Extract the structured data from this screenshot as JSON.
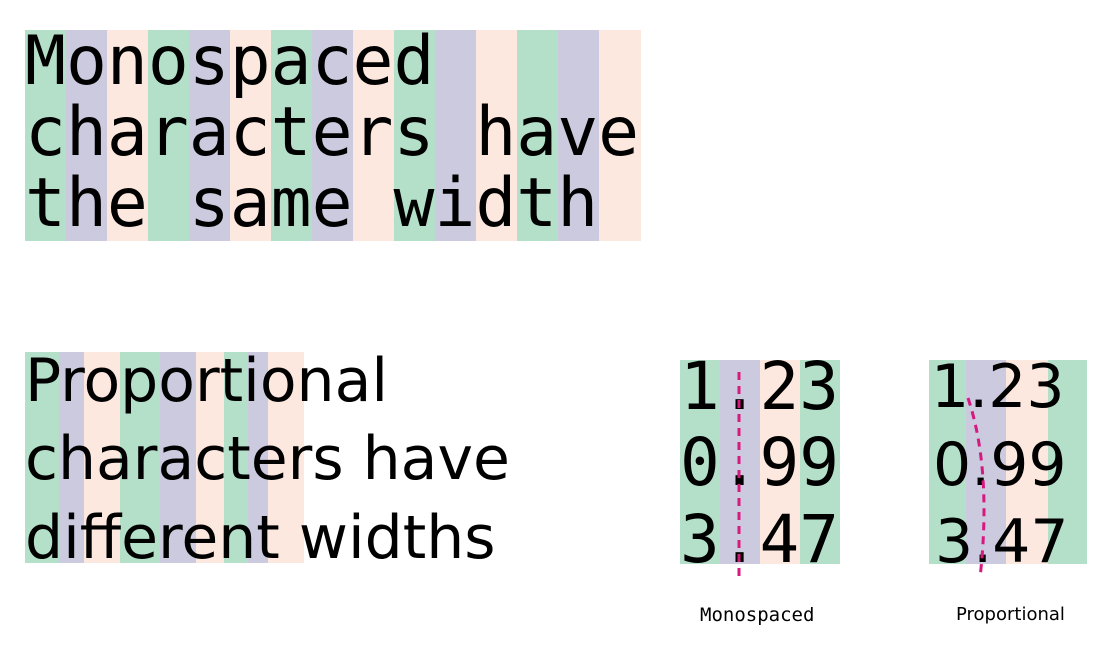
{
  "colors": {
    "green": "#b4e0c9",
    "purple": "#cccadf",
    "peach": "#fde8df",
    "text": "#000000",
    "guide": "#d6197f"
  },
  "mono_block": {
    "lines": [
      "Monospaced",
      "characters have",
      "the same width"
    ]
  },
  "prop_block": {
    "lines": [
      "Proportional",
      "characters have",
      "different widths"
    ]
  },
  "mono_numbers": {
    "lines": [
      "1.23",
      "0.99",
      "3.47"
    ],
    "caption": "Monospaced"
  },
  "prop_numbers": {
    "lines": [
      "1.23",
      "0.99",
      "3.47"
    ],
    "caption": "Proportional"
  }
}
